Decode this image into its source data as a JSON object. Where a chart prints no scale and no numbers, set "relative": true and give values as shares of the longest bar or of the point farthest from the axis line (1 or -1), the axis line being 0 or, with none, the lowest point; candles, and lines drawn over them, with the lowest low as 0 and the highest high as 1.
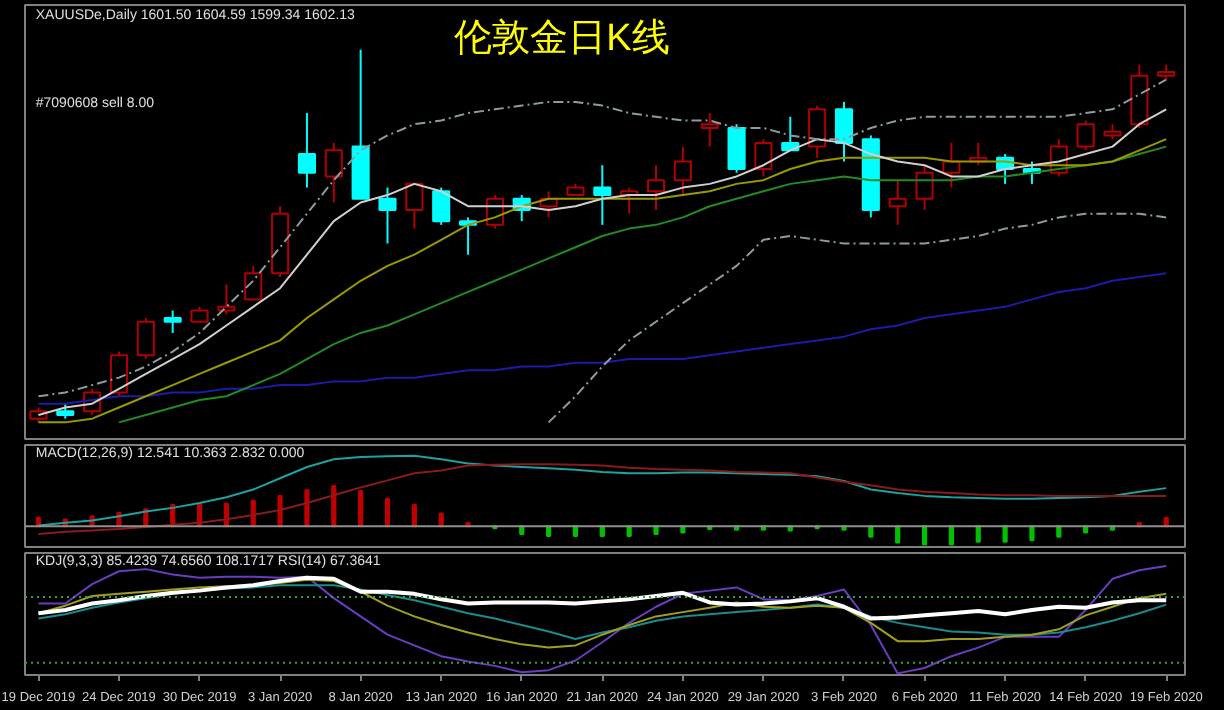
{
  "chart_data": [
    {
      "type": "candlestick",
      "title": "伦敦金日K线",
      "relative": true,
      "tick_labels": false,
      "grid": false,
      "annotations": [
        "XAUUSDe,Daily  1601.50 1604.59 1599.34 1602.13",
        "#7090608 sell 8.00"
      ],
      "categories": [
        null,
        null,
        null,
        null,
        null,
        null,
        null,
        null,
        null,
        null,
        null,
        null,
        null,
        null,
        null,
        null,
        null,
        null,
        null,
        null,
        null,
        null,
        null,
        null,
        null,
        null,
        null,
        null,
        null,
        null,
        null,
        null,
        null,
        null,
        null,
        null,
        null,
        null,
        null,
        null,
        null,
        null,
        null
      ],
      "ohlc": [
        [
          0.01,
          0.04,
          0.0,
          0.03
        ],
        [
          0.03,
          0.05,
          0.01,
          0.02
        ],
        [
          0.03,
          0.09,
          0.02,
          0.08
        ],
        [
          0.08,
          0.19,
          0.07,
          0.18
        ],
        [
          0.18,
          0.28,
          0.17,
          0.27
        ],
        [
          0.28,
          0.3,
          0.24,
          0.27
        ],
        [
          0.27,
          0.31,
          0.27,
          0.3
        ],
        [
          0.3,
          0.37,
          0.29,
          0.31
        ],
        [
          0.33,
          0.42,
          0.33,
          0.4
        ],
        [
          0.4,
          0.58,
          0.39,
          0.56
        ],
        [
          0.72,
          0.83,
          0.63,
          0.67
        ],
        [
          0.66,
          0.75,
          0.59,
          0.73
        ],
        [
          0.74,
          1.0,
          0.6,
          0.6
        ],
        [
          0.6,
          0.63,
          0.48,
          0.57
        ],
        [
          0.57,
          0.64,
          0.52,
          0.64
        ],
        [
          0.62,
          0.63,
          0.53,
          0.54
        ],
        [
          0.54,
          0.55,
          0.45,
          0.53
        ],
        [
          0.53,
          0.61,
          0.52,
          0.6
        ],
        [
          0.6,
          0.61,
          0.54,
          0.57
        ],
        [
          0.58,
          0.62,
          0.55,
          0.6
        ],
        [
          0.61,
          0.64,
          0.61,
          0.63
        ],
        [
          0.63,
          0.69,
          0.53,
          0.61
        ],
        [
          0.61,
          0.63,
          0.56,
          0.62
        ],
        [
          0.62,
          0.69,
          0.57,
          0.65
        ],
        [
          0.65,
          0.74,
          0.61,
          0.7
        ],
        [
          0.79,
          0.83,
          0.74,
          0.8
        ],
        [
          0.79,
          0.8,
          0.67,
          0.68
        ],
        [
          0.68,
          0.76,
          0.66,
          0.75
        ],
        [
          0.75,
          0.82,
          0.73,
          0.73
        ],
        [
          0.74,
          0.85,
          0.71,
          0.84
        ],
        [
          0.84,
          0.86,
          0.7,
          0.75
        ],
        [
          0.76,
          0.77,
          0.55,
          0.57
        ],
        [
          0.58,
          0.65,
          0.53,
          0.6
        ],
        [
          0.6,
          0.69,
          0.57,
          0.67
        ],
        [
          0.67,
          0.75,
          0.63,
          0.7
        ],
        [
          0.7,
          0.75,
          0.69,
          0.71
        ],
        [
          0.71,
          0.72,
          0.64,
          0.68
        ],
        [
          0.68,
          0.7,
          0.64,
          0.67
        ],
        [
          0.67,
          0.76,
          0.66,
          0.74
        ],
        [
          0.74,
          0.81,
          0.73,
          0.8
        ],
        [
          0.77,
          0.8,
          0.76,
          0.78
        ],
        [
          0.8,
          0.96,
          0.79,
          0.93
        ],
        [
          0.93,
          0.96,
          0.92,
          0.94
        ]
      ],
      "colors": [
        "#b00000",
        "#00ffff",
        "#b00000",
        "#b00000",
        "#b00000",
        "#00ffff",
        "#b00000",
        "#b00000",
        "#b00000",
        "#b00000",
        "#00ffff",
        "#b00000",
        "#00ffff",
        "#00ffff",
        "#b00000",
        "#00ffff",
        "#00ffff",
        "#b00000",
        "#00ffff",
        "#b00000",
        "#b00000",
        "#00ffff",
        "#b00000",
        "#b00000",
        "#b00000",
        "#b00000",
        "#00ffff",
        "#b00000",
        "#00ffff",
        "#b00000",
        "#00ffff",
        "#00ffff",
        "#b00000",
        "#b00000",
        "#b00000",
        "#b00000",
        "#00ffff",
        "#00ffff",
        "#b00000",
        "#b00000",
        "#b00000",
        "#b00000",
        "#b00000"
      ],
      "series": [
        {
          "type": "line",
          "color": "#1c1ca8",
          "line_style": "solid",
          "values": [
            0.05,
            0.05,
            0.06,
            0.07,
            0.07,
            0.08,
            0.08,
            0.09,
            0.09,
            0.1,
            0.1,
            0.11,
            0.11,
            0.12,
            0.12,
            0.13,
            0.14,
            0.14,
            0.15,
            0.15,
            0.16,
            0.16,
            0.17,
            0.17,
            0.17,
            0.18,
            0.19,
            0.2,
            0.21,
            0.22,
            0.23,
            0.25,
            0.26,
            0.28,
            0.29,
            0.3,
            0.31,
            0.33,
            0.35,
            0.36,
            0.38,
            0.39,
            0.4
          ]
        },
        {
          "type": "line",
          "color": "#228b22",
          "line_style": "solid",
          "values": [
            null,
            null,
            null,
            0.0,
            0.02,
            0.04,
            0.06,
            0.07,
            0.1,
            0.13,
            0.17,
            0.21,
            0.24,
            0.26,
            0.29,
            0.32,
            0.35,
            0.38,
            0.41,
            0.44,
            0.47,
            0.5,
            0.52,
            0.53,
            0.55,
            0.58,
            0.6,
            0.62,
            0.64,
            0.65,
            0.66,
            0.65,
            0.65,
            0.65,
            0.65,
            0.66,
            0.66,
            0.67,
            0.68,
            0.69,
            0.7,
            0.72,
            0.74
          ]
        },
        {
          "type": "line",
          "color": "#9a9a00",
          "line_style": "solid",
          "values": [
            0.0,
            0.0,
            0.01,
            0.04,
            0.07,
            0.1,
            0.13,
            0.16,
            0.19,
            0.22,
            0.28,
            0.33,
            0.38,
            0.42,
            0.45,
            0.49,
            0.53,
            0.55,
            0.58,
            0.6,
            0.6,
            0.6,
            0.6,
            0.6,
            0.61,
            0.62,
            0.64,
            0.65,
            0.68,
            0.7,
            0.71,
            0.71,
            0.71,
            0.71,
            0.7,
            0.7,
            0.7,
            0.69,
            0.69,
            0.69,
            0.7,
            0.73,
            0.76
          ]
        },
        {
          "type": "line",
          "color": "#d0d0d0",
          "line_style": "solid",
          "values": [
            0.02,
            0.04,
            0.05,
            0.09,
            0.13,
            0.17,
            0.21,
            0.26,
            0.31,
            0.36,
            0.45,
            0.54,
            0.59,
            0.61,
            0.64,
            0.62,
            0.58,
            0.58,
            0.58,
            0.57,
            0.58,
            0.6,
            0.61,
            0.61,
            0.63,
            0.64,
            0.66,
            0.69,
            0.73,
            0.76,
            0.75,
            0.72,
            0.7,
            0.69,
            0.66,
            0.66,
            0.68,
            0.69,
            0.7,
            0.72,
            0.74,
            0.8,
            0.84
          ]
        },
        {
          "type": "line",
          "color": "#8c9ca0",
          "line_style": "dashed",
          "values": [
            0.07,
            0.08,
            0.1,
            0.12,
            0.15,
            0.19,
            0.24,
            0.31,
            0.38,
            0.47,
            0.56,
            0.65,
            0.73,
            0.77,
            0.8,
            0.81,
            0.83,
            0.84,
            0.85,
            0.86,
            0.86,
            0.85,
            0.83,
            0.82,
            0.81,
            0.81,
            0.79,
            0.79,
            0.77,
            0.76,
            0.76,
            0.79,
            0.81,
            0.82,
            0.82,
            0.82,
            0.82,
            0.82,
            0.82,
            0.83,
            0.84,
            0.88,
            0.92
          ]
        },
        {
          "type": "line",
          "color": "#8c9ca0",
          "line_style": "dashed",
          "values": [
            null,
            null,
            null,
            null,
            null,
            null,
            null,
            null,
            null,
            null,
            null,
            null,
            null,
            null,
            null,
            null,
            null,
            null,
            null,
            0.0,
            0.07,
            0.15,
            0.22,
            0.27,
            0.32,
            0.37,
            0.42,
            0.49,
            0.5,
            0.49,
            0.48,
            0.48,
            0.48,
            0.48,
            0.49,
            0.5,
            0.52,
            0.53,
            0.55,
            0.56,
            0.56,
            0.56,
            0.55
          ]
        }
      ]
    },
    {
      "type": "bar",
      "title": "MACD(12,26,9) 12.541 10.363 2.832 0.000",
      "relative": true,
      "tick_labels": false,
      "grid": false,
      "categories": [
        null,
        null,
        null,
        null,
        null,
        null,
        null,
        null,
        null,
        null,
        null,
        null,
        null,
        null,
        null,
        null,
        null,
        null,
        null,
        null,
        null,
        null,
        null,
        null,
        null,
        null,
        null,
        null,
        null,
        null,
        null,
        null,
        null,
        null,
        null,
        null,
        null,
        null,
        null,
        null,
        null,
        null,
        null
      ],
      "ref_lines": [
        {
          "axis": "y",
          "value": 0,
          "color": "#909090",
          "line_style": "solid"
        }
      ],
      "series": [
        {
          "type": "bar",
          "colors": [
            "#c00000",
            "#c00000",
            "#c00000",
            "#c00000",
            "#c00000",
            "#c00000",
            "#c00000",
            "#c00000",
            "#c00000",
            "#c00000",
            "#c00000",
            "#c00000",
            "#c00000",
            "#c00000",
            "#c00000",
            "#c00000",
            "#c00000",
            "#00c000",
            "#00c000",
            "#00c000",
            "#00c000",
            "#00c000",
            "#00c000",
            "#00c000",
            "#00c000",
            "#00c000",
            "#00c000",
            "#00c000",
            "#00c000",
            "#00c000",
            "#00c000",
            "#00c000",
            "#00c000",
            "#00c000",
            "#00c000",
            "#00c000",
            "#00c000",
            "#00c000",
            "#00c000",
            "#00c000",
            "#00c000",
            "#c00000",
            "#c00000"
          ],
          "values": [
            0.12,
            0.1,
            0.14,
            0.19,
            0.24,
            0.3,
            0.32,
            0.32,
            0.36,
            0.43,
            0.51,
            0.57,
            0.5,
            0.39,
            0.3,
            0.18,
            0.05,
            -0.03,
            -0.11,
            -0.14,
            -0.14,
            -0.14,
            -0.14,
            -0.11,
            -0.09,
            -0.04,
            -0.05,
            -0.05,
            -0.06,
            -0.03,
            -0.05,
            -0.15,
            -0.23,
            -0.26,
            -0.26,
            -0.22,
            -0.22,
            -0.2,
            -0.15,
            -0.09,
            -0.05,
            0.05,
            0.12
          ]
        },
        {
          "type": "line",
          "color": "#20a0a0",
          "line_style": "solid",
          "values": [
            0.01,
            0.05,
            0.08,
            0.14,
            0.21,
            0.26,
            0.33,
            0.41,
            0.52,
            0.68,
            0.84,
            0.95,
            0.98,
            0.99,
            1.0,
            0.95,
            0.89,
            0.86,
            0.84,
            0.82,
            0.8,
            0.77,
            0.75,
            0.75,
            0.76,
            0.76,
            0.75,
            0.74,
            0.73,
            0.71,
            0.64,
            0.52,
            0.47,
            0.43,
            0.41,
            0.4,
            0.39,
            0.39,
            0.4,
            0.41,
            0.43,
            0.49,
            0.54
          ]
        },
        {
          "type": "line",
          "color": "#8b1a1a",
          "line_style": "solid",
          "values": [
            -0.11,
            -0.08,
            -0.06,
            -0.04,
            -0.01,
            0.02,
            0.05,
            0.1,
            0.16,
            0.23,
            0.33,
            0.44,
            0.55,
            0.65,
            0.75,
            0.79,
            0.86,
            0.87,
            0.88,
            0.88,
            0.87,
            0.86,
            0.83,
            0.81,
            0.8,
            0.79,
            0.77,
            0.76,
            0.75,
            0.69,
            0.63,
            0.58,
            0.52,
            0.49,
            0.47,
            0.45,
            0.44,
            0.44,
            0.43,
            0.43,
            0.43,
            0.43,
            0.43
          ]
        }
      ]
    },
    {
      "type": "line",
      "title": "KDJ(9,3,3) 85.4239 74.6560 108.1717  RSI(14) 67.3641",
      "relative": true,
      "tick_labels": "x",
      "grid": false,
      "categories": [
        "19 Dec 2019",
        null,
        null,
        "24 Dec 2019",
        null,
        null,
        "30 Dec 2019",
        null,
        null,
        "3 Jan 2020",
        null,
        null,
        "8 Jan 2020",
        null,
        null,
        "13 Jan 2020",
        null,
        null,
        "16 Jan 2020",
        null,
        null,
        "21 Jan 2020",
        null,
        null,
        "24 Jan 2020",
        null,
        null,
        "29 Jan 2020",
        null,
        null,
        "3 Feb 2020",
        null,
        null,
        "6 Feb 2020",
        null,
        null,
        "11 Feb 2020",
        null,
        null,
        "14 Feb 2020",
        null,
        null,
        "19 Feb 2020"
      ],
      "ref_lines": [
        {
          "axis": "y",
          "value": 0.71,
          "color": "#3aa03a",
          "line_style": "dotted"
        },
        {
          "axis": "y",
          "value": 0.1,
          "color": "#3aa03a",
          "line_style": "dotted"
        }
      ],
      "series": [
        {
          "type": "line",
          "color": "#6a3dc0",
          "line_style": "solid",
          "values": [
            0.65,
            0.65,
            0.83,
            0.95,
            0.97,
            0.92,
            0.89,
            0.9,
            0.9,
            0.89,
            0.9,
            0.7,
            0.53,
            0.36,
            0.26,
            0.16,
            0.11,
            0.07,
            0.01,
            0.03,
            0.12,
            0.29,
            0.47,
            0.62,
            0.74,
            0.77,
            0.8,
            0.69,
            0.68,
            0.72,
            0.78,
            0.45,
            0.0,
            0.05,
            0.16,
            0.24,
            0.34,
            0.34,
            0.34,
            0.59,
            0.88,
            0.96,
            1.0
          ]
        },
        {
          "type": "line",
          "color": "#1a8c8c",
          "line_style": "solid",
          "values": [
            0.51,
            0.55,
            0.61,
            0.66,
            0.7,
            0.74,
            0.77,
            0.79,
            0.8,
            0.82,
            0.82,
            0.82,
            0.78,
            0.73,
            0.68,
            0.62,
            0.56,
            0.51,
            0.45,
            0.39,
            0.32,
            0.38,
            0.43,
            0.49,
            0.53,
            0.55,
            0.57,
            0.59,
            0.61,
            0.64,
            0.61,
            0.53,
            0.47,
            0.43,
            0.39,
            0.38,
            0.36,
            0.36,
            0.38,
            0.43,
            0.49,
            0.56,
            0.64
          ]
        },
        {
          "type": "line",
          "color": "#a0a020",
          "line_style": "solid",
          "values": [
            0.56,
            0.63,
            0.72,
            0.74,
            0.76,
            0.78,
            0.8,
            0.81,
            0.82,
            0.84,
            0.87,
            0.86,
            0.76,
            0.63,
            0.53,
            0.45,
            0.38,
            0.32,
            0.27,
            0.24,
            0.26,
            0.36,
            0.45,
            0.53,
            0.57,
            0.61,
            0.66,
            0.62,
            0.61,
            0.63,
            0.61,
            0.47,
            0.3,
            0.3,
            0.32,
            0.32,
            0.34,
            0.36,
            0.41,
            0.54,
            0.62,
            0.7,
            0.74
          ]
        },
        {
          "type": "line",
          "color": "#ffffff",
          "line_style": "solid",
          "values": [
            0.56,
            0.59,
            0.65,
            0.68,
            0.72,
            0.75,
            0.77,
            0.8,
            0.82,
            0.86,
            0.89,
            0.88,
            0.76,
            0.76,
            0.74,
            0.69,
            0.65,
            0.66,
            0.66,
            0.66,
            0.65,
            0.67,
            0.69,
            0.72,
            0.75,
            0.66,
            0.64,
            0.65,
            0.67,
            0.7,
            0.62,
            0.51,
            0.52,
            0.54,
            0.56,
            0.58,
            0.55,
            0.59,
            0.62,
            0.61,
            0.66,
            0.68,
            0.68
          ]
        }
      ]
    }
  ]
}
